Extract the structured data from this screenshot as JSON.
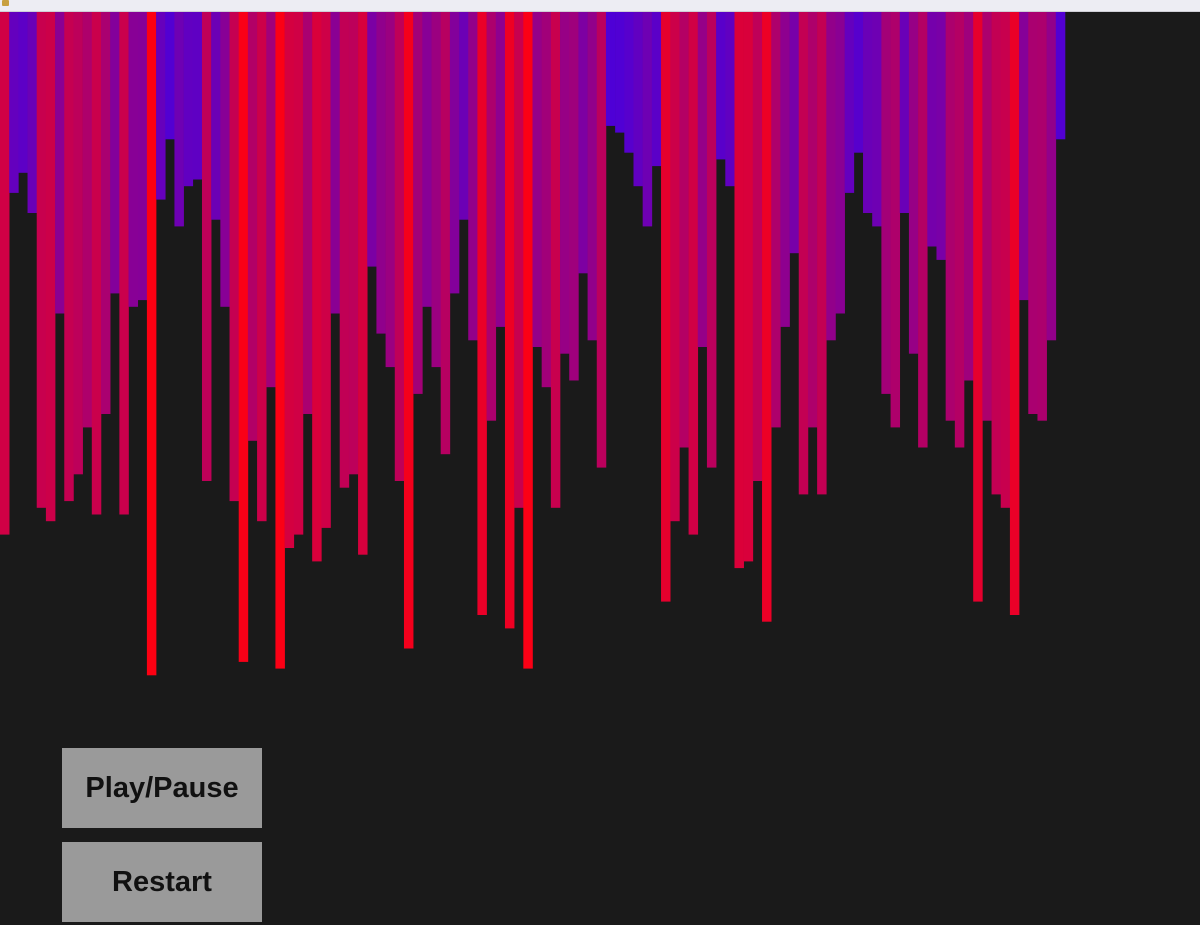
{
  "window": {
    "icon": "java-app-icon",
    "background_color": "#1a1a1a"
  },
  "visualizer": {
    "bar_color_short": "#2a00ff",
    "bar_color_tall": "#ff0010",
    "bar_count": 116,
    "values": [
      0.78,
      0.27,
      0.24,
      0.3,
      0.74,
      0.76,
      0.45,
      0.73,
      0.69,
      0.62,
      0.75,
      0.6,
      0.42,
      0.75,
      0.44,
      0.43,
      0.99,
      0.28,
      0.19,
      0.32,
      0.26,
      0.25,
      0.7,
      0.31,
      0.44,
      0.73,
      0.97,
      0.64,
      0.76,
      0.56,
      0.98,
      0.8,
      0.78,
      0.6,
      0.82,
      0.77,
      0.45,
      0.71,
      0.69,
      0.81,
      0.38,
      0.48,
      0.53,
      0.7,
      0.95,
      0.57,
      0.44,
      0.53,
      0.66,
      0.42,
      0.31,
      0.49,
      0.9,
      0.61,
      0.47,
      0.92,
      0.74,
      0.98,
      0.5,
      0.56,
      0.74,
      0.51,
      0.55,
      0.39,
      0.49,
      0.68,
      0.17,
      0.18,
      0.21,
      0.26,
      0.32,
      0.23,
      0.88,
      0.76,
      0.65,
      0.78,
      0.5,
      0.68,
      0.22,
      0.26,
      0.83,
      0.82,
      0.7,
      0.91,
      0.62,
      0.47,
      0.36,
      0.72,
      0.62,
      0.72,
      0.49,
      0.45,
      0.27,
      0.21,
      0.3,
      0.32,
      0.57,
      0.62,
      0.3,
      0.51,
      0.65,
      0.35,
      0.37,
      0.61,
      0.65,
      0.55,
      0.88,
      0.61,
      0.72,
      0.74,
      0.9,
      0.43,
      0.6,
      0.61,
      0.49,
      0.19
    ]
  },
  "controls": {
    "play_pause_label": "Play/Pause",
    "restart_label": "Restart",
    "button_color": "#9a9a9a"
  }
}
